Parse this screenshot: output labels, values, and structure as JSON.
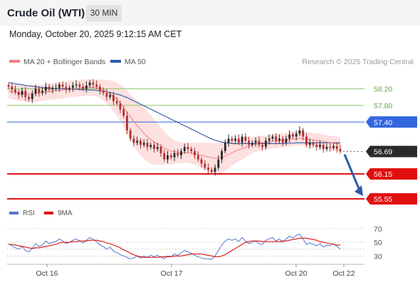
{
  "header": {
    "title": "Crude Oil (WTI)",
    "timeframe": "30 MIN",
    "timestamp": "Monday, October 20, 2025 9:12:15 AM CET"
  },
  "legend": {
    "items": [
      {
        "label": "MA 20 + Bollinger Bands",
        "color": "#f08080"
      },
      {
        "label": "MA 50",
        "color": "#2e5aa8"
      }
    ],
    "copyright": "Research © 2025 Trading Central"
  },
  "rsi_legend": {
    "items": [
      {
        "label": "RSI",
        "color": "#5577cc"
      },
      {
        "label": "9MA",
        "color": "#e01010"
      }
    ]
  },
  "colors": {
    "up_candle": "#2a2a2a",
    "down_candle": "#b03030",
    "support": "#e01010",
    "pivot": "#3366dd",
    "resistance": "#8ec46a",
    "bb_fill": "#fde0e0",
    "last_price": "#2a2a2a",
    "projection_arrow": "#2e5aa8"
  },
  "chart_data": {
    "type": "candlestick",
    "instrument": "Crude Oil (WTI)",
    "interval": "30 MIN",
    "x_tick_labels": [
      "Oct 16",
      "Oct 17",
      "Oct 20",
      "Oct 22"
    ],
    "ylim": [
      55.45,
      58.45
    ],
    "last_price": 56.69,
    "levels": [
      {
        "label": "58.20",
        "value": 58.2,
        "kind": "resistance"
      },
      {
        "label": "57.80",
        "value": 57.8,
        "kind": "resistance"
      },
      {
        "label": "57.40",
        "value": 57.4,
        "kind": "pivot"
      },
      {
        "label": "56.69",
        "value": 56.69,
        "kind": "last"
      },
      {
        "label": "56.15",
        "value": 56.15,
        "kind": "support"
      },
      {
        "label": "55.55",
        "value": 55.55,
        "kind": "support"
      }
    ],
    "close": [
      58.25,
      58.18,
      58.12,
      58.05,
      58.15,
      58.0,
      57.95,
      58.08,
      58.2,
      58.1,
      58.15,
      58.25,
      58.18,
      58.2,
      58.22,
      58.3,
      58.25,
      58.18,
      58.22,
      58.28,
      58.3,
      58.25,
      58.2,
      58.28,
      58.35,
      58.3,
      58.25,
      58.15,
      58.1,
      58.0,
      58.05,
      57.9,
      57.85,
      57.7,
      57.55,
      57.2,
      57.0,
      56.9,
      56.95,
      56.85,
      56.9,
      56.8,
      56.85,
      56.75,
      56.8,
      56.65,
      56.5,
      56.6,
      56.55,
      56.65,
      56.6,
      56.7,
      56.8,
      56.75,
      56.7,
      56.6,
      56.5,
      56.4,
      56.3,
      56.25,
      56.2,
      56.3,
      56.5,
      56.7,
      56.9,
      57.0,
      56.95,
      57.0,
      56.9,
      57.05,
      56.95,
      56.85,
      56.9,
      56.95,
      56.85,
      56.8,
      56.95,
      57.0,
      57.05,
      56.95,
      57.0,
      56.9,
      57.0,
      57.1,
      57.05,
      57.12,
      57.2,
      57.05,
      56.85,
      56.9,
      56.85,
      56.8,
      56.85,
      56.75,
      56.8,
      56.78,
      56.82,
      56.75,
      56.69
    ],
    "ma20": [
      58.15,
      58.13,
      58.12,
      58.1,
      58.1,
      58.09,
      58.08,
      58.08,
      58.09,
      58.1,
      58.11,
      58.12,
      58.13,
      58.14,
      58.15,
      58.16,
      58.17,
      58.18,
      58.19,
      58.2,
      58.21,
      58.22,
      58.22,
      58.23,
      58.23,
      58.23,
      58.22,
      58.2,
      58.17,
      58.13,
      58.08,
      58.02,
      57.95,
      57.86,
      57.76,
      57.64,
      57.52,
      57.41,
      57.31,
      57.22,
      57.13,
      57.05,
      56.98,
      56.92,
      56.87,
      56.82,
      56.77,
      56.73,
      56.7,
      56.68,
      56.67,
      56.66,
      56.66,
      56.66,
      56.65,
      56.64,
      56.62,
      56.6,
      56.58,
      56.56,
      56.54,
      56.53,
      56.53,
      56.55,
      56.58,
      56.62,
      56.66,
      56.7,
      56.73,
      56.76,
      56.79,
      56.82,
      56.85,
      56.87,
      56.89,
      56.9,
      56.91,
      56.92,
      56.93,
      56.94,
      56.95,
      56.96,
      56.97,
      56.98,
      56.99,
      57.0,
      57.01,
      57.0,
      56.99,
      56.98,
      56.97,
      56.96,
      56.95,
      56.93,
      56.92,
      56.9,
      56.89,
      56.88,
      56.87
    ],
    "ma50": [
      58.35,
      58.34,
      58.32,
      58.31,
      58.3,
      58.28,
      58.27,
      58.26,
      58.25,
      58.24,
      58.23,
      58.22,
      58.22,
      58.21,
      58.21,
      58.2,
      58.2,
      58.2,
      58.19,
      58.19,
      58.19,
      58.18,
      58.18,
      58.18,
      58.17,
      58.17,
      58.16,
      58.15,
      58.14,
      58.13,
      58.11,
      58.09,
      58.07,
      58.05,
      58.02,
      57.99,
      57.95,
      57.91,
      57.87,
      57.83,
      57.79,
      57.75,
      57.71,
      57.67,
      57.63,
      57.59,
      57.55,
      57.51,
      57.47,
      57.43,
      57.39,
      57.35,
      57.31,
      57.27,
      57.23,
      57.19,
      57.15,
      57.11,
      57.07,
      57.03,
      56.99,
      56.96,
      56.94,
      56.92,
      56.9,
      56.89,
      56.88,
      56.88,
      56.88,
      56.88,
      56.88,
      56.88,
      56.88,
      56.88,
      56.88,
      56.88,
      56.88,
      56.88,
      56.88,
      56.88,
      56.88,
      56.88,
      56.89,
      56.89,
      56.89,
      56.9,
      56.9,
      56.9,
      56.9,
      56.9,
      56.9,
      56.9,
      56.9,
      56.9,
      56.9,
      56.9,
      56.9,
      56.9,
      56.9
    ],
    "bb_half_width": [
      0.18,
      0.18,
      0.19,
      0.19,
      0.2,
      0.2,
      0.2,
      0.2,
      0.2,
      0.2,
      0.2,
      0.2,
      0.2,
      0.2,
      0.2,
      0.2,
      0.2,
      0.2,
      0.2,
      0.2,
      0.2,
      0.2,
      0.2,
      0.2,
      0.2,
      0.2,
      0.2,
      0.22,
      0.25,
      0.28,
      0.32,
      0.36,
      0.4,
      0.44,
      0.48,
      0.52,
      0.55,
      0.58,
      0.6,
      0.62,
      0.62,
      0.6,
      0.58,
      0.55,
      0.5,
      0.45,
      0.4,
      0.36,
      0.32,
      0.28,
      0.26,
      0.25,
      0.24,
      0.24,
      0.25,
      0.26,
      0.28,
      0.3,
      0.32,
      0.34,
      0.36,
      0.37,
      0.38,
      0.38,
      0.36,
      0.34,
      0.32,
      0.3,
      0.28,
      0.26,
      0.24,
      0.22,
      0.2,
      0.19,
      0.18,
      0.17,
      0.17,
      0.17,
      0.17,
      0.17,
      0.17,
      0.17,
      0.17,
      0.17,
      0.17,
      0.17,
      0.17,
      0.17,
      0.17,
      0.17,
      0.17,
      0.17,
      0.17,
      0.17,
      0.17,
      0.17,
      0.17,
      0.17,
      0.17
    ],
    "rsi": {
      "ylim": [
        22,
        74
      ],
      "tick_labels": [
        "70",
        "50",
        "30"
      ],
      "guide_levels": [
        70,
        50,
        40,
        30
      ],
      "rsi": [
        48,
        45,
        42,
        40,
        44,
        38,
        36,
        41,
        48,
        44,
        46,
        52,
        48,
        50,
        51,
        55,
        52,
        48,
        50,
        53,
        55,
        52,
        49,
        53,
        57,
        54,
        51,
        46,
        44,
        40,
        43,
        37,
        35,
        32,
        30,
        28,
        26,
        27,
        30,
        27,
        30,
        28,
        31,
        29,
        31,
        28,
        26,
        30,
        29,
        33,
        31,
        35,
        38,
        36,
        34,
        31,
        29,
        27,
        26,
        26,
        25,
        30,
        38,
        46,
        52,
        55,
        53,
        55,
        51,
        57,
        52,
        48,
        50,
        52,
        48,
        47,
        53,
        55,
        57,
        52,
        55,
        50,
        55,
        59,
        56,
        60,
        62,
        55,
        47,
        49,
        47,
        45,
        48,
        43,
        46,
        45,
        48,
        44,
        40
      ],
      "ma9": [
        47,
        47,
        46,
        45,
        44,
        43,
        42,
        41,
        42,
        42,
        43,
        44,
        45,
        46,
        47,
        49,
        50,
        50,
        50,
        51,
        51,
        52,
        52,
        52,
        53,
        53,
        53,
        52,
        51,
        49,
        48,
        46,
        44,
        42,
        39,
        37,
        34,
        32,
        30,
        29,
        28,
        28,
        28,
        28,
        28,
        29,
        29,
        29,
        29,
        30,
        30,
        30,
        31,
        32,
        33,
        33,
        33,
        33,
        32,
        31,
        30,
        29,
        29,
        30,
        32,
        35,
        38,
        41,
        44,
        47,
        50,
        51,
        52,
        52,
        52,
        51,
        51,
        51,
        51,
        51,
        51,
        52,
        52,
        53,
        54,
        55,
        56,
        56,
        56,
        55,
        54,
        53,
        51,
        50,
        49,
        48,
        47,
        46,
        46
      ]
    }
  }
}
